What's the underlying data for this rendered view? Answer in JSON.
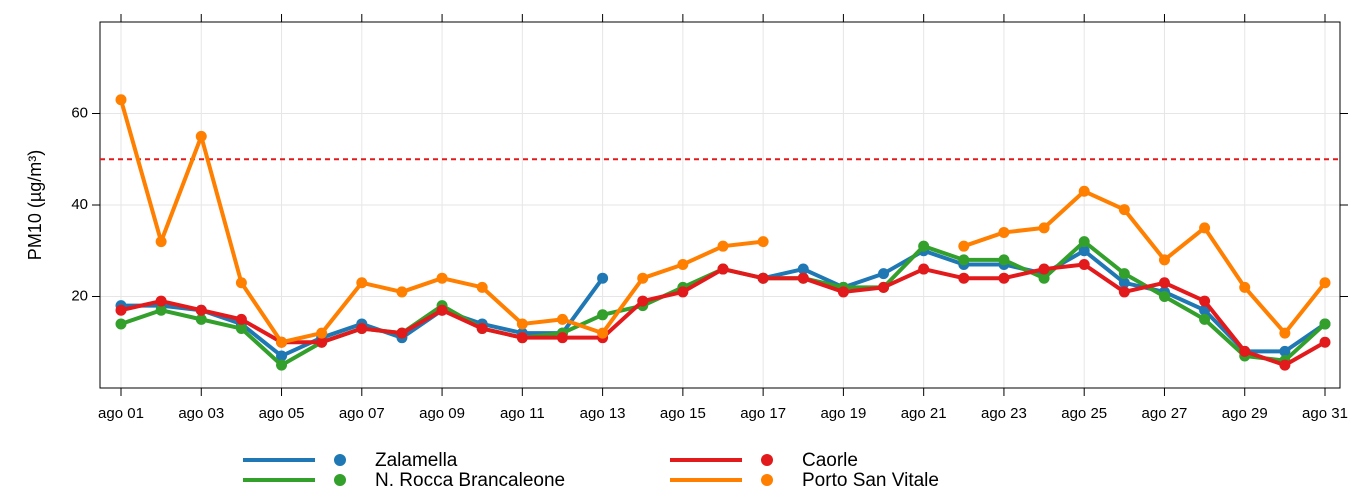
{
  "chart_data": {
    "type": "line",
    "y_label": "PM10 (µg/m³)",
    "categories": [
      "ago 01",
      null,
      "ago 03",
      null,
      "ago 05",
      null,
      "ago 07",
      null,
      "ago 09",
      null,
      "ago 11",
      null,
      "ago 13",
      null,
      "ago 15",
      null,
      "ago 17",
      null,
      "ago 19",
      null,
      "ago 21",
      null,
      "ago 23",
      null,
      "ago 25",
      null,
      "ago 27",
      null,
      "ago 29",
      null,
      "ago 31"
    ],
    "series": [
      {
        "name": "Zalamella",
        "color": "#1f78b4",
        "values": [
          18,
          18,
          17,
          14,
          7,
          11,
          14,
          11,
          17,
          14,
          12,
          12,
          24,
          null,
          null,
          null,
          24,
          26,
          22,
          25,
          30,
          27,
          27,
          25,
          30,
          23,
          21,
          17,
          8,
          8,
          14
        ]
      },
      {
        "name": "N. Rocca Brancaleone",
        "color": "#33a02c",
        "values": [
          14,
          17,
          15,
          13,
          5,
          10,
          13,
          12,
          18,
          13,
          11,
          12,
          16,
          18,
          22,
          26,
          24,
          24,
          22,
          22,
          31,
          28,
          28,
          24,
          32,
          25,
          20,
          15,
          7,
          6,
          14
        ]
      },
      {
        "name": "Caorle",
        "color": "#e31a1c",
        "values": [
          17,
          19,
          17,
          15,
          10,
          10,
          13,
          12,
          17,
          13,
          11,
          11,
          11,
          19,
          21,
          26,
          24,
          24,
          21,
          22,
          26,
          24,
          24,
          26,
          27,
          21,
          23,
          19,
          8,
          5,
          10
        ]
      },
      {
        "name": "Porto San Vitale",
        "color": "#ff7f00",
        "values": [
          63,
          32,
          55,
          23,
          10,
          12,
          23,
          21,
          24,
          22,
          14,
          15,
          12,
          24,
          27,
          31,
          32,
          null,
          null,
          null,
          null,
          31,
          34,
          35,
          43,
          39,
          28,
          35,
          22,
          12,
          23
        ]
      }
    ],
    "threshold": 50,
    "threshold_color": "#e31a1c",
    "ylim": [
      0,
      80
    ],
    "yticks": [
      20,
      40,
      60
    ],
    "grid": true
  }
}
